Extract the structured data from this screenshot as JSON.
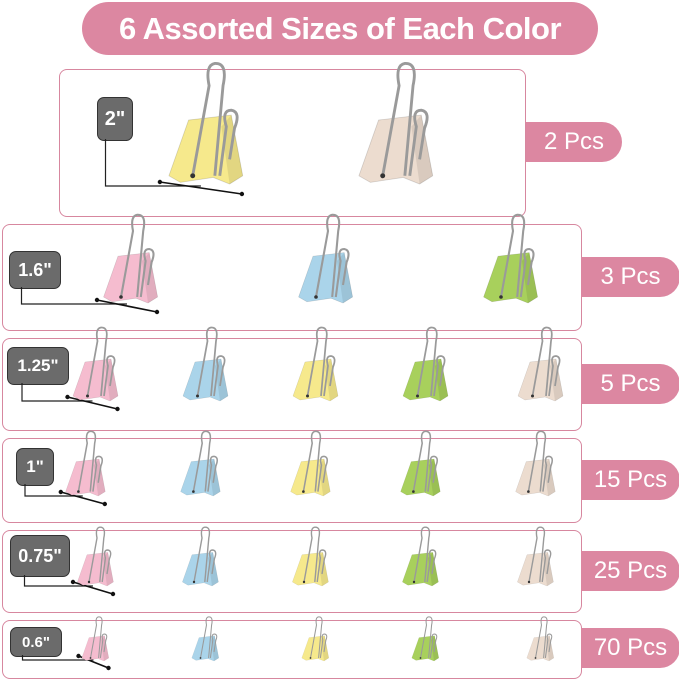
{
  "title": "6 Assorted Sizes of Each Color",
  "colors": {
    "accent": "#dc87a1",
    "badge": "#6b6b6b",
    "pink": "#f5bccf",
    "blue": "#aad4ea",
    "yellow": "#f6e98c",
    "green": "#a8d05c",
    "beige": "#ecdccf"
  },
  "rows": [
    {
      "size": "2\"",
      "count": "2 Pcs",
      "clips": [
        "yellow",
        "beige"
      ]
    },
    {
      "size": "1.6\"",
      "count": "3 Pcs",
      "clips": [
        "pink",
        "blue",
        "green"
      ]
    },
    {
      "size": "1.25\"",
      "count": "5 Pcs",
      "clips": [
        "pink",
        "blue",
        "yellow",
        "green",
        "beige"
      ]
    },
    {
      "size": "1\"",
      "count": "15 Pcs",
      "clips": [
        "pink",
        "blue",
        "yellow",
        "green",
        "beige"
      ]
    },
    {
      "size": "0.75\"",
      "count": "25 Pcs",
      "clips": [
        "pink",
        "blue",
        "yellow",
        "green",
        "beige"
      ]
    },
    {
      "size": "0.6\"",
      "count": "70 Pcs",
      "clips": [
        "pink",
        "blue",
        "yellow",
        "green",
        "beige"
      ]
    }
  ]
}
